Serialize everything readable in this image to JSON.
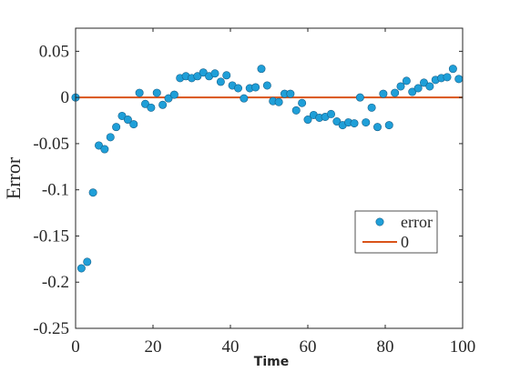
{
  "chart_data": {
    "type": "scatter",
    "title": "",
    "xlabel": "Time",
    "ylabel": "Error",
    "xlim": [
      0,
      100
    ],
    "ylim": [
      -0.25,
      0.075
    ],
    "xticks": [
      0,
      20,
      40,
      60,
      80,
      100
    ],
    "xtick_labels": [
      "0",
      "20",
      "40",
      "60",
      "80",
      "100"
    ],
    "yticks": [
      0.05,
      0,
      -0.05,
      -0.1,
      -0.15,
      -0.2,
      -0.25
    ],
    "ytick_labels": [
      "0.05",
      "0",
      "-0.05",
      "-0.1",
      "-0.15",
      "-0.2",
      "-0.25"
    ],
    "grid": false,
    "legend_position": "lower-right",
    "series": [
      {
        "name": "error",
        "kind": "scatter",
        "color": "#1f9fd8",
        "points": [
          [
            0,
            0.0
          ],
          [
            1.5,
            -0.185
          ],
          [
            3,
            -0.178
          ],
          [
            4.5,
            -0.103
          ],
          [
            6,
            -0.052
          ],
          [
            7.5,
            -0.056
          ],
          [
            9,
            -0.043
          ],
          [
            10.5,
            -0.032
          ],
          [
            12,
            -0.02
          ],
          [
            13.5,
            -0.024
          ],
          [
            15,
            -0.029
          ],
          [
            16.5,
            0.005
          ],
          [
            18,
            -0.007
          ],
          [
            19.5,
            -0.011
          ],
          [
            21,
            0.005
          ],
          [
            22.5,
            -0.008
          ],
          [
            24,
            -0.001
          ],
          [
            25.5,
            0.003
          ],
          [
            27,
            0.021
          ],
          [
            28.5,
            0.023
          ],
          [
            30,
            0.021
          ],
          [
            31.5,
            0.023
          ],
          [
            33,
            0.027
          ],
          [
            34.5,
            0.023
          ],
          [
            36,
            0.026
          ],
          [
            37.5,
            0.017
          ],
          [
            39,
            0.024
          ],
          [
            40.5,
            0.013
          ],
          [
            42,
            0.01
          ],
          [
            43.5,
            -0.001
          ],
          [
            45,
            0.01
          ],
          [
            46.5,
            0.011
          ],
          [
            48,
            0.031
          ],
          [
            49.5,
            0.013
          ],
          [
            51,
            -0.004
          ],
          [
            52.5,
            -0.005
          ],
          [
            54,
            0.004
          ],
          [
            55.5,
            0.004
          ],
          [
            57,
            -0.014
          ],
          [
            58.5,
            -0.006
          ],
          [
            60,
            -0.024
          ],
          [
            61.5,
            -0.019
          ],
          [
            63,
            -0.022
          ],
          [
            64.5,
            -0.021
          ],
          [
            66,
            -0.018
          ],
          [
            67.5,
            -0.026
          ],
          [
            69,
            -0.03
          ],
          [
            70.5,
            -0.027
          ],
          [
            72,
            -0.028
          ],
          [
            73.5,
            0.0
          ],
          [
            75,
            -0.027
          ],
          [
            76.5,
            -0.011
          ],
          [
            78,
            -0.032
          ],
          [
            79.5,
            0.004
          ],
          [
            81,
            -0.03
          ],
          [
            82.5,
            0.005
          ],
          [
            84,
            0.012
          ],
          [
            85.5,
            0.018
          ],
          [
            87,
            0.006
          ],
          [
            88.5,
            0.01
          ],
          [
            90,
            0.016
          ],
          [
            91.5,
            0.012
          ],
          [
            93,
            0.019
          ],
          [
            94.5,
            0.021
          ],
          [
            96,
            0.022
          ],
          [
            97.5,
            0.031
          ],
          [
            99,
            0.02
          ]
        ]
      },
      {
        "name": "0",
        "kind": "line",
        "color": "#d95319",
        "points": [
          [
            0,
            0
          ],
          [
            100,
            0
          ]
        ]
      }
    ]
  }
}
